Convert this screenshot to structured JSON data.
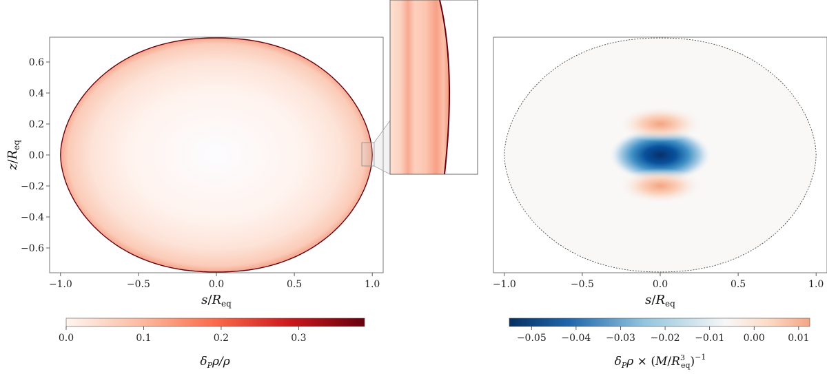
{
  "chart_data": [
    {
      "type": "heatmap",
      "panel": "left",
      "xlabel_main": "s",
      "xlabel_sub": "R",
      "xlabel_subscript": "eq",
      "ylabel_main": "z",
      "ylabel_sub": "R",
      "ylabel_subscript": "eq",
      "xlim": [
        -1.07,
        1.07
      ],
      "ylim": [
        -0.76,
        0.76
      ],
      "xticks": [
        -1.0,
        -0.5,
        0.0,
        0.5,
        1.0
      ],
      "xtick_labels": [
        "−1.0",
        "−0.5",
        "0.0",
        "0.5",
        "1.0"
      ],
      "yticks": [
        -0.6,
        -0.4,
        -0.2,
        0.0,
        0.2,
        0.4,
        0.6
      ],
      "ytick_labels": [
        "−0.6",
        "−0.4",
        "−0.2",
        "0.0",
        "0.2",
        "0.4",
        "0.6"
      ],
      "surface_equatorial_radius": 1.0,
      "surface_polar_radius": 0.755,
      "field_description_levels": [
        0.0,
        0.1,
        0.2,
        0.3
      ],
      "colormap": "Reds",
      "colorbar": {
        "range": [
          0.0,
          0.385
        ],
        "ticks": [
          0.0,
          0.1,
          0.2,
          0.3
        ],
        "tick_labels": [
          "0.0",
          "0.1",
          "0.2",
          "0.3"
        ],
        "label": "δ_P ρ / ρ"
      },
      "inset": {
        "zoom_x_range": [
          0.94,
          1.01
        ],
        "zoom_y_range": [
          -0.07,
          0.07
        ]
      }
    },
    {
      "type": "heatmap",
      "panel": "right",
      "xlabel_main": "s",
      "xlabel_sub": "R",
      "xlabel_subscript": "eq",
      "xlim": [
        -1.07,
        1.07
      ],
      "ylim": [
        -0.76,
        0.76
      ],
      "xticks": [
        -1.0,
        -0.5,
        0.0,
        0.5,
        1.0
      ],
      "xtick_labels": [
        "−1.0",
        "−0.5",
        "0.0",
        "0.5",
        "1.0"
      ],
      "colormap": "RdBu_r",
      "features": [
        {
          "kind": "negative_core",
          "s": 0.0,
          "z": 0.0,
          "value": -0.055
        },
        {
          "kind": "positive_lobe",
          "s": 0.0,
          "z": 0.2,
          "value": 0.012
        },
        {
          "kind": "positive_lobe",
          "s": 0.0,
          "z": -0.2,
          "value": 0.012
        }
      ],
      "colorbar": {
        "range": [
          -0.055,
          0.0125
        ],
        "ticks": [
          -0.05,
          -0.04,
          -0.03,
          -0.02,
          -0.01,
          0.0,
          0.01
        ],
        "tick_labels": [
          "−0.05",
          "−0.04",
          "−0.03",
          "−0.02",
          "−0.01",
          "0.00",
          "0.01"
        ],
        "label": "δ_P ρ × (M/R_eq^3)^(−1)"
      }
    }
  ],
  "colors": {
    "reds_low": "#fff5f0",
    "reds_mid": "#fb6a4a",
    "reds_high": "#67000d",
    "blues_core": "#08306b",
    "blues_mid": "#4a90c2",
    "neutral": "#f7f7f7",
    "pos_lobe": "#f4a582"
  },
  "labels": {
    "left_colorbar_label": "δPρ/ρ",
    "right_colorbar_label": "δPρ × (M/R³eq)⁻¹",
    "x_axis_left": "s/Req",
    "x_axis_right": "s/Req",
    "y_axis_left": "z/Req"
  }
}
